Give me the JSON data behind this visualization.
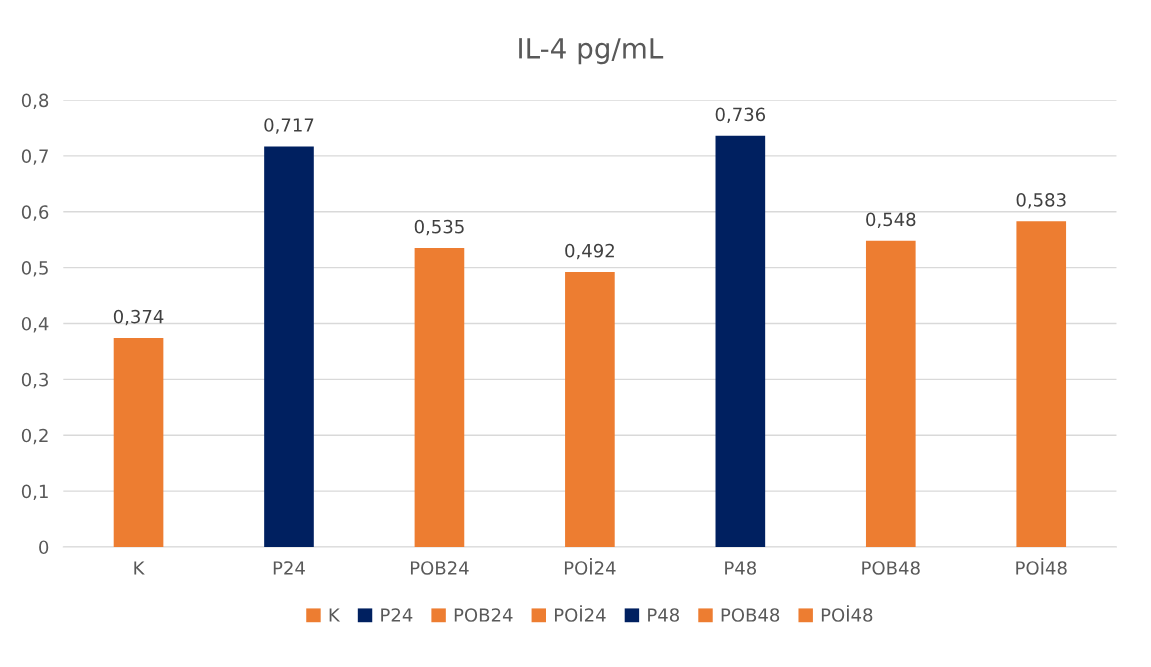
{
  "chart_data": {
    "type": "bar",
    "title": "IL-4 pg/mL",
    "categories": [
      "K",
      "P24",
      "POB24",
      "POİ24",
      "P48",
      "POB48",
      "POİ48"
    ],
    "series": [
      {
        "name": "K",
        "color": "#ed7d31",
        "values": [
          0.374,
          null,
          null,
          null,
          null,
          null,
          null
        ],
        "value_labels": [
          "0,374",
          null,
          null,
          null,
          null,
          null,
          null
        ]
      },
      {
        "name": "P24",
        "color": "#002060",
        "values": [
          null,
          0.717,
          null,
          null,
          null,
          null,
          null
        ],
        "value_labels": [
          null,
          "0,717",
          null,
          null,
          null,
          null,
          null
        ]
      },
      {
        "name": "POB24",
        "color": "#ed7d31",
        "values": [
          null,
          null,
          0.535,
          null,
          null,
          null,
          null
        ],
        "value_labels": [
          null,
          null,
          "0,535",
          null,
          null,
          null,
          null
        ]
      },
      {
        "name": "POİ24",
        "color": "#ed7d31",
        "values": [
          null,
          null,
          null,
          0.492,
          null,
          null,
          null
        ],
        "value_labels": [
          null,
          null,
          null,
          "0,492",
          null,
          null,
          null
        ]
      },
      {
        "name": "P48",
        "color": "#002060",
        "values": [
          null,
          null,
          null,
          null,
          0.736,
          null,
          null
        ],
        "value_labels": [
          null,
          null,
          null,
          null,
          "0,736",
          null,
          null
        ]
      },
      {
        "name": "POB48",
        "color": "#ed7d31",
        "values": [
          null,
          null,
          null,
          null,
          null,
          0.548,
          null
        ],
        "value_labels": [
          null,
          null,
          null,
          null,
          null,
          "0,548",
          null
        ]
      },
      {
        "name": "POİ48",
        "color": "#ed7d31",
        "values": [
          null,
          null,
          null,
          null,
          null,
          null,
          0.583
        ],
        "value_labels": [
          null,
          null,
          null,
          null,
          null,
          null,
          "0,583"
        ]
      }
    ],
    "ylim": [
      0,
      0.8
    ],
    "yticks": [
      {
        "value": 0,
        "label": "0"
      },
      {
        "value": 0.1,
        "label": "0,1"
      },
      {
        "value": 0.2,
        "label": "0,2"
      },
      {
        "value": 0.3,
        "label": "0,3"
      },
      {
        "value": 0.4,
        "label": "0,4"
      },
      {
        "value": 0.5,
        "label": "0,5"
      },
      {
        "value": 0.6,
        "label": "0,6"
      },
      {
        "value": 0.7,
        "label": "0,7"
      },
      {
        "value": 0.8,
        "label": "0,8"
      }
    ],
    "grid": "y",
    "legend": "bottom"
  }
}
